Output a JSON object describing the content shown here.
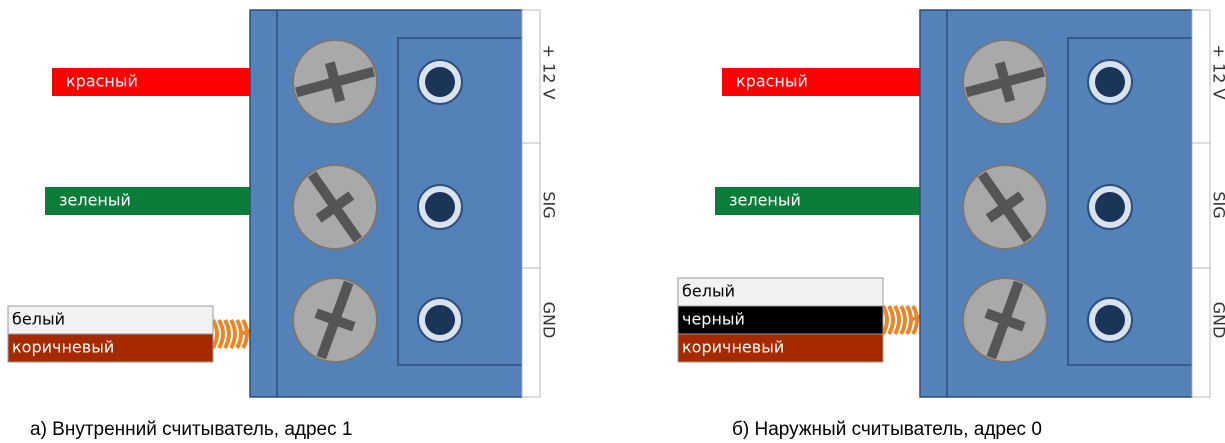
{
  "panels": [
    {
      "caption": "а) Внутренний считыватель, адрес 1",
      "terminals": [
        "+ 12 V",
        "SIG",
        "GND"
      ],
      "wires": [
        {
          "label": "красный",
          "color": "#ff0000"
        },
        {
          "label": "зеленый",
          "color": "#0b7d3b"
        }
      ],
      "bundle": [
        {
          "label": "белый",
          "color": "#f2f2f2"
        },
        {
          "label": "коричневый",
          "color": "#a52a00"
        }
      ]
    },
    {
      "caption": "б) Наружный считыватель, адрес 0",
      "terminals": [
        "+ 12 V",
        "SIG",
        "GND"
      ],
      "wires": [
        {
          "label": "красный",
          "color": "#ff0000"
        },
        {
          "label": "зеленый",
          "color": "#0b7d3b"
        }
      ],
      "bundle": [
        {
          "label": "белый",
          "color": "#f2f2f2"
        },
        {
          "label": "черный",
          "color": "#000000"
        },
        {
          "label": "коричневый",
          "color": "#a52a00"
        }
      ]
    }
  ]
}
